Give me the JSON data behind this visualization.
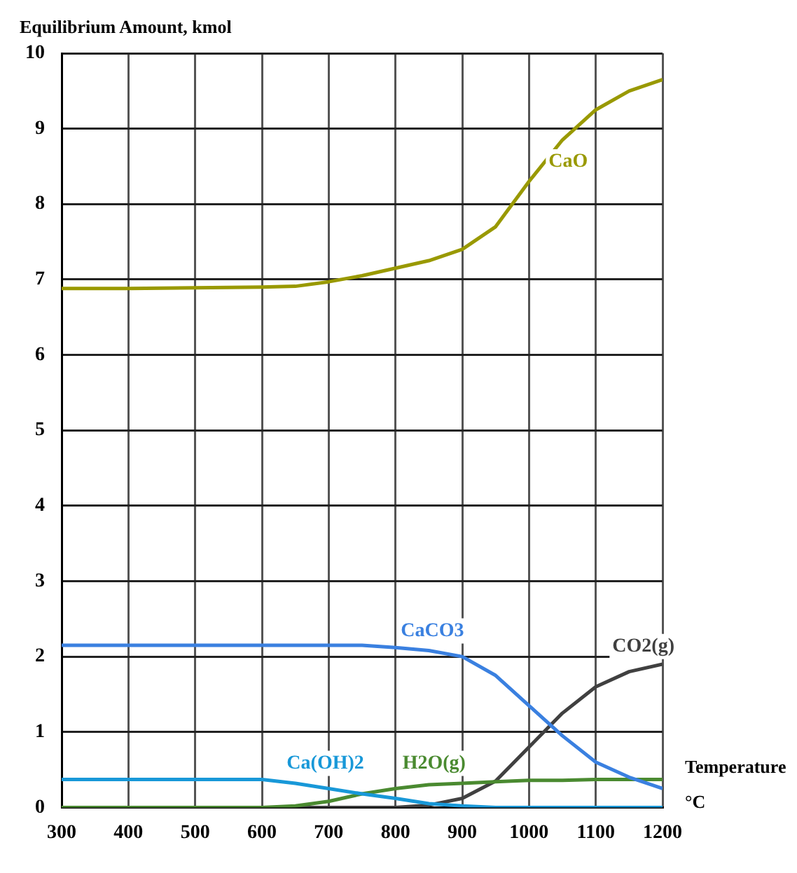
{
  "chart_data": {
    "type": "line",
    "xlabel": "Temperature °C",
    "ylabel": "Equilibrium Amount, kmol",
    "x": [
      300,
      400,
      500,
      600,
      650,
      700,
      750,
      800,
      850,
      900,
      950,
      1000,
      1050,
      1100,
      1150,
      1200
    ],
    "xlim": [
      300,
      1200
    ],
    "xticks": [
      300,
      400,
      500,
      600,
      700,
      800,
      900,
      1000,
      1100,
      1200
    ],
    "ylim": [
      0,
      10
    ],
    "yticks": [
      0,
      1,
      2,
      3,
      4,
      5,
      6,
      7,
      8,
      9,
      10
    ],
    "grid": true,
    "legend": false,
    "marker": "none",
    "line_style": "solid",
    "series": [
      {
        "name": "CaO",
        "color": "#999900",
        "values": [
          6.88,
          6.88,
          6.89,
          6.9,
          6.91,
          6.97,
          7.05,
          7.15,
          7.25,
          7.4,
          7.7,
          8.3,
          8.85,
          9.25,
          9.5,
          9.65
        ]
      },
      {
        "name": "CaCO3",
        "color": "#3a80e0",
        "values": [
          2.15,
          2.15,
          2.15,
          2.15,
          2.15,
          2.15,
          2.15,
          2.12,
          2.08,
          2.0,
          1.75,
          1.35,
          0.95,
          0.6,
          0.4,
          0.25
        ]
      },
      {
        "name": "Ca(OH)2",
        "color": "#1898d8",
        "values": [
          0.37,
          0.37,
          0.37,
          0.37,
          0.32,
          0.25,
          0.18,
          0.12,
          0.05,
          0.02,
          0,
          0,
          0,
          0,
          0,
          0
        ]
      },
      {
        "name": "H2O(g)",
        "color": "#4a8a30",
        "values": [
          0,
          0,
          0,
          0,
          0.02,
          0.08,
          0.18,
          0.25,
          0.3,
          0.32,
          0.34,
          0.36,
          0.36,
          0.37,
          0.37,
          0.37
        ]
      },
      {
        "name": "CO2(g)",
        "color": "#404040",
        "values": [
          0,
          0,
          0,
          0,
          0,
          0,
          0,
          0,
          0.03,
          0.12,
          0.35,
          0.8,
          1.25,
          1.6,
          1.8,
          1.9
        ]
      }
    ]
  }
}
